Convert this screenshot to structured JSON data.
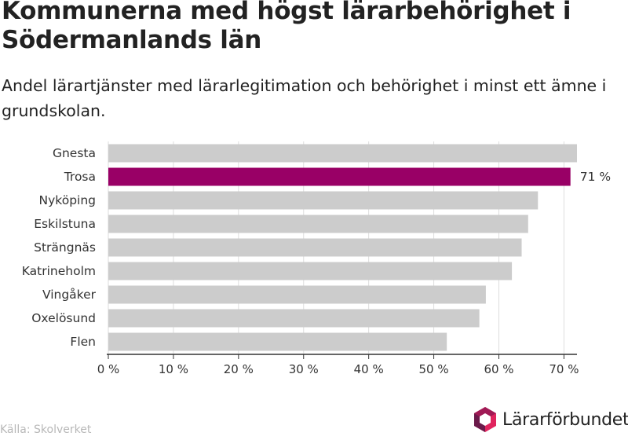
{
  "title": "Kommunerna med högst lärarbehörighet i Södermanlands län",
  "subtitle": "Andel lärartjänster med lärarlegitimation och behörighet i minst ett ämne i grundskolan.",
  "source": "Källa: Skolverket",
  "logo_text": "Lärarförbundet",
  "colors": {
    "bar": "#cccccc",
    "highlight": "#990066",
    "grid": "#dddddd",
    "axis": "#333333"
  },
  "chart_data": {
    "type": "bar",
    "orientation": "horizontal",
    "categories": [
      "Gnesta",
      "Trosa",
      "Nyköping",
      "Eskilstuna",
      "Strängnäs",
      "Katrineholm",
      "Vingåker",
      "Oxelösund",
      "Flen"
    ],
    "values": [
      72,
      71,
      66,
      64.5,
      63.5,
      62,
      58,
      57,
      52
    ],
    "highlight_category": "Trosa",
    "data_labels": [
      {
        "category": "Trosa",
        "text": "71 %"
      }
    ],
    "xlim": [
      0,
      72
    ],
    "xticks": [
      0,
      10,
      20,
      30,
      40,
      50,
      60,
      70
    ],
    "xtick_labels": [
      "0 %",
      "10 %",
      "20 %",
      "30 %",
      "40 %",
      "50 %",
      "60 %",
      "70 %"
    ],
    "grid": true
  }
}
